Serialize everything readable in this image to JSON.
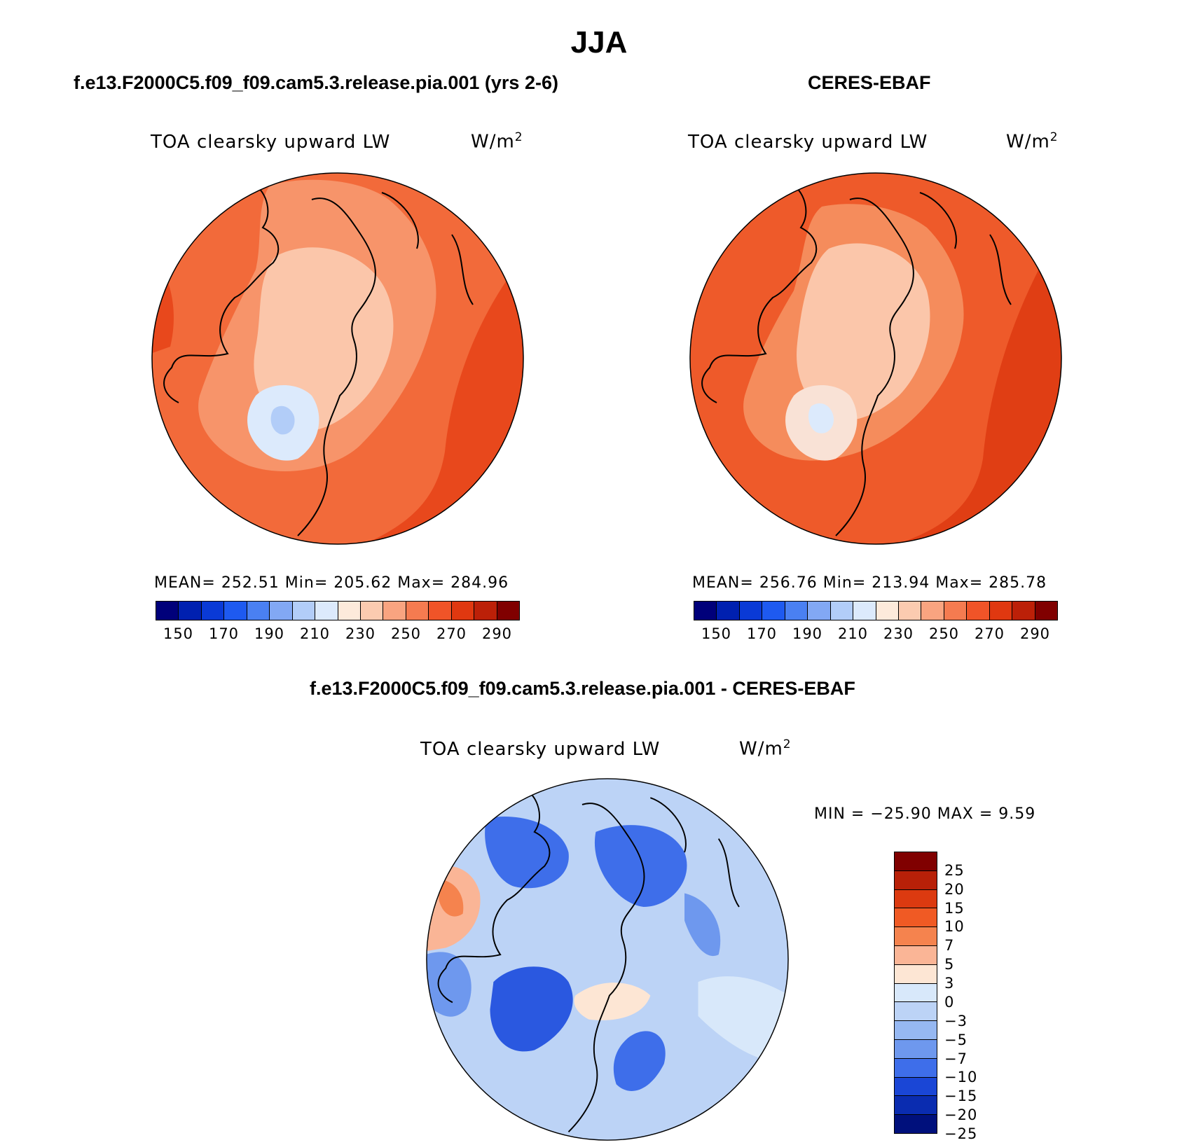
{
  "title": "JJA",
  "panels": {
    "model": {
      "title": "f.e13.F2000C5.f09_f09.cam5.3.release.pia.001 (yrs 2-6)",
      "variable": "TOA clearsky upward LW",
      "units_base": "W/m",
      "units_exp": "2",
      "stats": "MEAN= 252.51   Min= 205.62   Max= 284.96"
    },
    "obs": {
      "title": "CERES-EBAF",
      "variable": "TOA clearsky upward LW",
      "units_base": "W/m",
      "units_exp": "2",
      "stats": "MEAN= 256.76   Min= 213.94   Max= 285.78"
    },
    "diff": {
      "title": "f.e13.F2000C5.f09_f09.cam5.3.release.pia.001 - CERES-EBAF",
      "variable": "TOA clearsky upward LW",
      "units_base": "W/m",
      "units_exp": "2",
      "stats": "MIN = −25.90 MAX =    9.59"
    }
  },
  "abs_colorbar": {
    "colors": [
      "#00007a",
      "#0020b0",
      "#0a3ad6",
      "#1e5af0",
      "#4a80f2",
      "#82a8f4",
      "#b2cdf8",
      "#dceafc",
      "#fdeadb",
      "#fbcbb0",
      "#f9a480",
      "#f57b50",
      "#f05428",
      "#e03810",
      "#bc2008",
      "#800000"
    ],
    "ticks": [
      "150",
      "170",
      "190",
      "210",
      "230",
      "250",
      "270",
      "290"
    ]
  },
  "diff_colorbar": {
    "colors": [
      "#800000",
      "#b82008",
      "#dc3a10",
      "#f05a24",
      "#f5834e",
      "#fab596",
      "#fde6d4",
      "#d8e8fa",
      "#bcd3f6",
      "#96b8f2",
      "#6e98ee",
      "#3e6eea",
      "#1a46d6",
      "#0a2cb0",
      "#00107c"
    ],
    "ticks": [
      "25",
      "20",
      "15",
      "10",
      "7",
      "5",
      "3",
      "0",
      "−3",
      "−5",
      "−7",
      "−10",
      "−15",
      "−20",
      "−25"
    ]
  }
}
